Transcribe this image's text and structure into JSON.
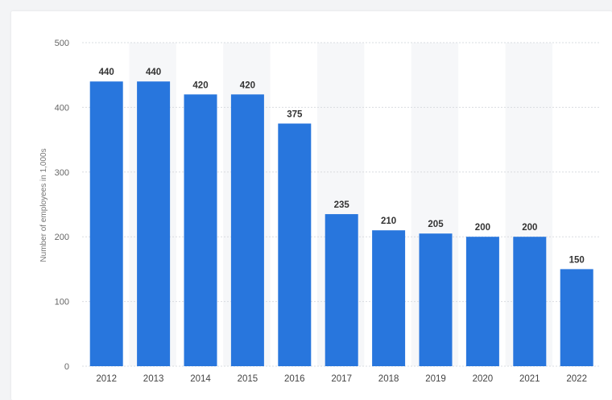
{
  "chart_data": {
    "type": "bar",
    "ylabel": "Number of employees in 1,000s",
    "ylim": [
      0,
      500
    ],
    "yticks": [
      0,
      100,
      200,
      300,
      400,
      500
    ],
    "grid": true,
    "categories": [
      "2012",
      "2013",
      "2014",
      "2015",
      "2016",
      "2017",
      "2018",
      "2019",
      "2020",
      "2021",
      "2022"
    ],
    "values": [
      440,
      440,
      420,
      420,
      375,
      235,
      210,
      205,
      200,
      200,
      150
    ],
    "data_labels": [
      "440",
      "440",
      "420",
      "420",
      "375",
      "235",
      "210",
      "205",
      "200",
      "200",
      "150"
    ],
    "colors": {
      "bar": "#2876dd",
      "band": "#f6f7f9",
      "grid": "#d9dce0"
    }
  }
}
